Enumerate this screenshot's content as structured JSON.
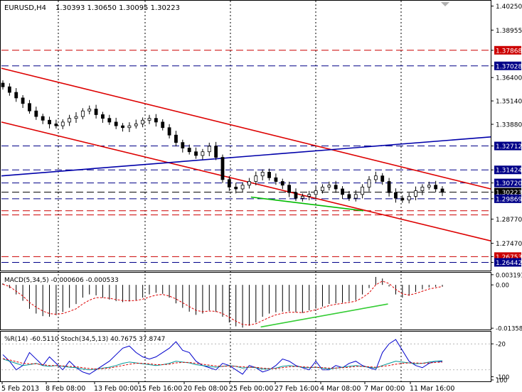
{
  "chart_data": {
    "type": "candlestick",
    "symbol_label": "EURUSD,H4",
    "ohlc_label": "1.30393 1.30650 1.30095 1.30223",
    "price_axis": {
      "ylim": [
        1.26,
        1.405
      ],
      "ticks": [
        "1.40250",
        "1.38955",
        "1.37868",
        "1.37028",
        "1.36400",
        "1.35140",
        "1.33880",
        "1.32712",
        "1.31424",
        "1.30720",
        "1.30223",
        "1.29869",
        "1.28770",
        "1.27470",
        "1.26753",
        "1.26442"
      ],
      "tick_values": [
        1.4025,
        1.38955,
        1.37868,
        1.37028,
        1.364,
        1.3514,
        1.3388,
        1.32712,
        1.31424,
        1.3072,
        1.30223,
        1.29869,
        1.2877,
        1.2747,
        1.26753,
        1.26442
      ]
    },
    "level_lines": [
      {
        "label": "1.37868",
        "value": 1.37868,
        "color": "#cc0000"
      },
      {
        "label": "1.37028",
        "value": 1.37028,
        "color": "#000088"
      },
      {
        "label": "1.32712",
        "value": 1.32712,
        "color": "#000088"
      },
      {
        "label": "1.31424",
        "value": 1.31424,
        "color": "#000088"
      },
      {
        "label": "1.30720",
        "value": 1.3072,
        "color": "#000088"
      },
      {
        "label": "1.30223",
        "value": 1.30223,
        "color": "#000000"
      },
      {
        "label": "1.29869",
        "value": 1.29869,
        "color": "#000088"
      },
      {
        "label": "1.29224",
        "value": 1.29224,
        "color": "#cc0000"
      },
      {
        "label": "1.28998",
        "value": 1.28998,
        "color": "#cc0000"
      },
      {
        "label": "1.26753",
        "value": 1.26753,
        "color": "#cc0000"
      },
      {
        "label": "1.26442",
        "value": 1.26442,
        "color": "#000088"
      }
    ],
    "trend_lines": [
      {
        "color": "#dd0000",
        "from": [
          0,
          1.369
        ],
        "to": [
          1,
          1.304
        ]
      },
      {
        "color": "#dd0000",
        "from": [
          0,
          1.34
        ],
        "to": [
          1,
          1.276
        ]
      },
      {
        "color": "#0000aa",
        "from": [
          0,
          1.311
        ],
        "to": [
          1,
          1.332
        ]
      },
      {
        "color": "#00bb00",
        "from": [
          0.51,
          1.2996
        ],
        "to": [
          0.74,
          1.2922
        ]
      }
    ],
    "closes": [
      1.359,
      1.356,
      1.353,
      1.35,
      1.346,
      1.343,
      1.341,
      1.339,
      1.338,
      1.34,
      1.342,
      1.343,
      1.346,
      1.347,
      1.344,
      1.342,
      1.34,
      1.338,
      1.337,
      1.338,
      1.339,
      1.341,
      1.342,
      1.34,
      1.337,
      1.333,
      1.329,
      1.326,
      1.324,
      1.322,
      1.324,
      1.327,
      1.321,
      1.309,
      1.305,
      1.304,
      1.306,
      1.308,
      1.311,
      1.313,
      1.31,
      1.308,
      1.306,
      1.302,
      1.299,
      1.3,
      1.301,
      1.303,
      1.305,
      1.306,
      1.304,
      1.301,
      1.299,
      1.301,
      1.305,
      1.309,
      1.311,
      1.308,
      1.302,
      1.299,
      1.298,
      1.3,
      1.303,
      1.305,
      1.306,
      1.304,
      1.3022
    ],
    "macd": {
      "label": "MACD(5,34,5) -0.000606 -0.000533",
      "ticks": [
        "0.003191",
        "0.00",
        "-0.013588"
      ],
      "tick_values": [
        0.003191,
        0.0,
        -0.013588
      ],
      "ylim": [
        -0.014,
        0.0036
      ],
      "histogram": [
        0.0005,
        -0.001,
        -0.003,
        -0.005,
        -0.0075,
        -0.009,
        -0.0098,
        -0.01,
        -0.0095,
        -0.0085,
        -0.0072,
        -0.006,
        -0.004,
        -0.003,
        -0.0033,
        -0.004,
        -0.0046,
        -0.0051,
        -0.0054,
        -0.0052,
        -0.0048,
        -0.004,
        -0.003,
        -0.0025,
        -0.0028,
        -0.004,
        -0.0058,
        -0.0072,
        -0.0084,
        -0.0094,
        -0.009,
        -0.008,
        -0.0085,
        -0.01,
        -0.0118,
        -0.013,
        -0.0134,
        -0.0128,
        -0.0118,
        -0.01,
        -0.009,
        -0.0086,
        -0.0084,
        -0.0083,
        -0.0086,
        -0.0088,
        -0.008,
        -0.0074,
        -0.0068,
        -0.006,
        -0.0058,
        -0.0056,
        -0.0052,
        -0.0048,
        -0.003,
        -0.001,
        0.0025,
        0.002,
        -0.0005,
        -0.003,
        -0.004,
        -0.0034,
        -0.0022,
        -0.0014,
        -0.0008,
        -0.0006,
        -0.0006
      ],
      "signal": [
        0.0002,
        -0.0005,
        -0.002,
        -0.0035,
        -0.0055,
        -0.007,
        -0.0082,
        -0.009,
        -0.0092,
        -0.009,
        -0.0083,
        -0.0075,
        -0.006,
        -0.0048,
        -0.004,
        -0.004,
        -0.0042,
        -0.0046,
        -0.0049,
        -0.005,
        -0.0049,
        -0.0045,
        -0.0038,
        -0.0032,
        -0.003,
        -0.0035,
        -0.0044,
        -0.0056,
        -0.0068,
        -0.008,
        -0.0084,
        -0.0082,
        -0.0083,
        -0.009,
        -0.0102,
        -0.0114,
        -0.0124,
        -0.0126,
        -0.0122,
        -0.0112,
        -0.0102,
        -0.0094,
        -0.0089,
        -0.0086,
        -0.0086,
        -0.0087,
        -0.0083,
        -0.0078,
        -0.0072,
        -0.0065,
        -0.0061,
        -0.0058,
        -0.0055,
        -0.0051,
        -0.004,
        -0.0025,
        0.0,
        0.0012,
        0.0004,
        -0.0014,
        -0.0028,
        -0.0032,
        -0.0027,
        -0.002,
        -0.0013,
        -0.0009,
        -0.0005
      ],
      "divergence_line": {
        "color": "#33cc33",
        "from": [
          0.53,
          -0.0132
        ],
        "to": [
          0.79,
          -0.006
        ]
      }
    },
    "oscillators": {
      "label": "%R(14) -60.5110  Stoch(34,5,13) 40.7675 37.8747",
      "ticks": [
        "-20",
        "-100",
        "100"
      ],
      "tick_values": [
        80,
        0,
        0
      ],
      "ylim": [
        0,
        100
      ],
      "williams_r_shifted": [
        55,
        40,
        20,
        30,
        60,
        45,
        30,
        50,
        35,
        20,
        40,
        25,
        15,
        10,
        20,
        30,
        40,
        55,
        70,
        75,
        60,
        50,
        45,
        50,
        60,
        70,
        85,
        65,
        60,
        40,
        30,
        25,
        20,
        35,
        30,
        20,
        10,
        30,
        25,
        15,
        20,
        30,
        45,
        40,
        30,
        25,
        20,
        40,
        20,
        20,
        30,
        25,
        35,
        40,
        30,
        25,
        20,
        60,
        80,
        90,
        65,
        40,
        30,
        25,
        35,
        40,
        39
      ],
      "stoch_main": [
        45,
        40,
        35,
        30,
        32,
        35,
        30,
        28,
        30,
        28,
        26,
        25,
        22,
        20,
        22,
        24,
        26,
        30,
        35,
        38,
        36,
        34,
        32,
        30,
        32,
        35,
        40,
        38,
        36,
        32,
        30,
        28,
        26,
        28,
        30,
        28,
        24,
        26,
        25,
        22,
        22,
        24,
        28,
        30,
        28,
        26,
        25,
        26,
        24,
        22,
        24,
        26,
        28,
        30,
        28,
        26,
        24,
        30,
        35,
        40,
        38,
        36,
        34,
        35,
        38,
        40,
        41
      ],
      "stoch_signal": [
        46,
        43,
        39,
        35,
        34,
        34,
        32,
        30,
        30,
        29,
        28,
        27,
        25,
        23,
        22,
        23,
        24,
        27,
        30,
        33,
        35,
        35,
        34,
        32,
        32,
        33,
        36,
        37,
        37,
        35,
        33,
        31,
        29,
        28,
        29,
        28,
        27,
        26,
        26,
        24,
        23,
        23,
        25,
        27,
        28,
        27,
        26,
        26,
        25,
        24,
        24,
        25,
        26,
        28,
        28,
        27,
        26,
        28,
        30,
        33,
        35,
        36,
        36,
        35,
        36,
        37,
        38
      ]
    },
    "time_axis": {
      "labels": [
        "5 Feb 2013",
        "8 Feb 08:00",
        "13 Feb 00:00",
        "15 Feb 16:00",
        "20 Feb 08:00",
        "25 Feb 00:00",
        "27 Feb 16:00",
        "4 Mar 08:00",
        "7 Mar 00:00",
        "11 Mar 16:00"
      ]
    },
    "colors": {
      "candle": "#000000",
      "grid": "#000000",
      "macd_signal": "#dd0000",
      "stoch_main": "#009999",
      "stoch_signal": "#dd0000",
      "williams": "#0000cc"
    }
  }
}
